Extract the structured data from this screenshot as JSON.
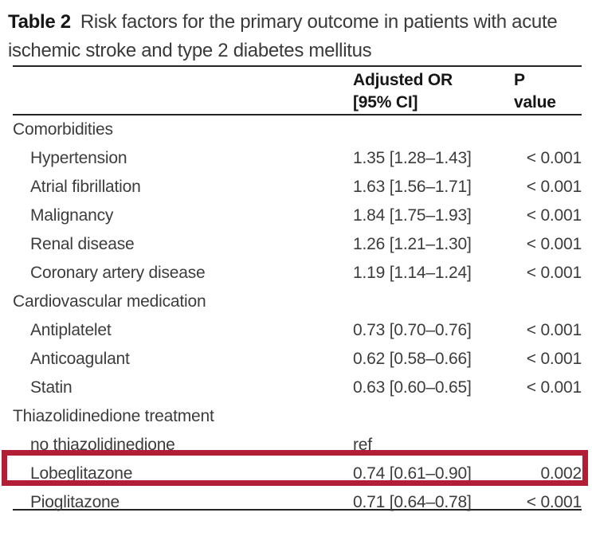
{
  "title": {
    "table_label": "Table 2",
    "caption": "Risk factors for the primary outcome in patients with acute ischemic stroke and type 2 diabetes mellitus"
  },
  "header": {
    "or_line1": "Adjusted OR",
    "or_line2": "[95% CI]",
    "p_line1": "P",
    "p_line2": "value"
  },
  "table": {
    "rows": [
      {
        "label": "Comorbidities",
        "or": "",
        "p": "",
        "kind": "section"
      },
      {
        "label": "Hypertension",
        "or": "1.35 [1.28–1.43]",
        "p": "< 0.001",
        "kind": "item"
      },
      {
        "label": "Atrial fibrillation",
        "or": "1.63 [1.56–1.71]",
        "p": "< 0.001",
        "kind": "item"
      },
      {
        "label": "Malignancy",
        "or": "1.84 [1.75–1.93]",
        "p": "< 0.001",
        "kind": "item"
      },
      {
        "label": "Renal disease",
        "or": "1.26 [1.21–1.30]",
        "p": "< 0.001",
        "kind": "item"
      },
      {
        "label": "Coronary artery disease",
        "or": "1.19 [1.14–1.24]",
        "p": "< 0.001",
        "kind": "item"
      },
      {
        "label": "Cardiovascular medication",
        "or": "",
        "p": "",
        "kind": "section"
      },
      {
        "label": "Antiplatelet",
        "or": "0.73 [0.70–0.76]",
        "p": "< 0.001",
        "kind": "item"
      },
      {
        "label": "Anticoagulant",
        "or": "0.62 [0.58–0.66]",
        "p": "< 0.001",
        "kind": "item"
      },
      {
        "label": "Statin",
        "or": "0.63 [0.60–0.65]",
        "p": "< 0.001",
        "kind": "item"
      },
      {
        "label": "Thiazolidinedione treatment",
        "or": "",
        "p": "",
        "kind": "section"
      },
      {
        "label": "no thiazolidinedione",
        "or": "ref",
        "p": "",
        "kind": "item"
      },
      {
        "label": "Lobeglitazone",
        "or": "0.74 [0.61–0.90]",
        "p": "0.002",
        "kind": "item",
        "highlighted": true
      },
      {
        "label": "Pioglitazone",
        "or": "0.71 [0.64–0.78]",
        "p": "< 0.001",
        "kind": "item"
      }
    ]
  },
  "highlight": {
    "highlighted_row_label": "Lobeglitazone",
    "box_color": "#b21e35"
  },
  "colors": {
    "body_text": "#3c3c3c",
    "bold_text": "#161616",
    "rule": "#242424",
    "background": "#ffffff"
  }
}
